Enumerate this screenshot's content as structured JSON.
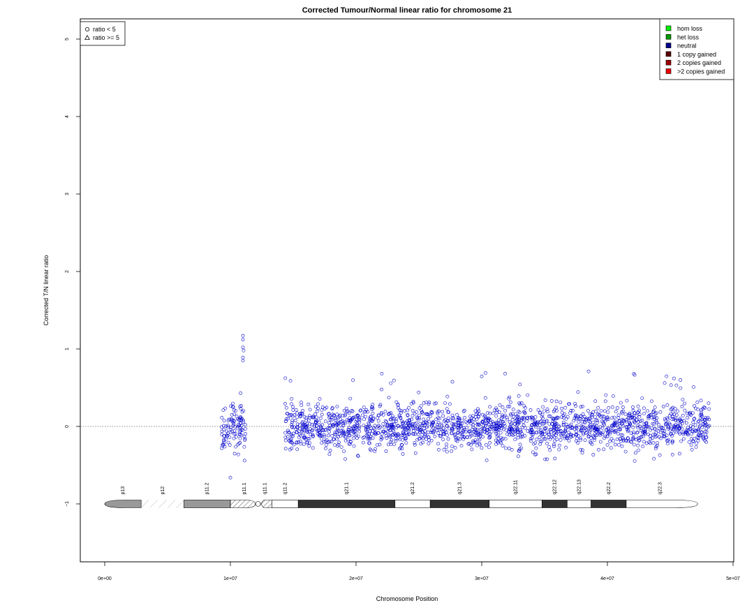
{
  "chart_data": {
    "type": "scatter",
    "title": "Corrected Tumour/Normal linear ratio for chromosome  21",
    "xlabel": "Chromosome Position",
    "ylabel": "Corrected T/N linear ratio",
    "xlim": [
      0,
      50000000
    ],
    "ylim": [
      -1.8,
      5.3
    ],
    "x_ticks": [
      0,
      10000000,
      20000000,
      30000000,
      40000000,
      50000000
    ],
    "x_tick_labels": [
      "0e+00",
      "1e+07",
      "2e+07",
      "3e+07",
      "4e+07",
      "5e+07"
    ],
    "y_ticks": [
      -1,
      0,
      1,
      2,
      3,
      4,
      5
    ],
    "y_tick_labels": [
      "−1",
      "0",
      "1",
      "2",
      "3",
      "4",
      "5"
    ],
    "reference_line": 0,
    "shape_legend": {
      "position": "top-left",
      "entries": [
        {
          "shape": "circle",
          "label": "ratio < 5"
        },
        {
          "shape": "triangle",
          "label": "ratio >= 5"
        }
      ]
    },
    "color_legend": {
      "position": "top-right",
      "entries": [
        {
          "label": "hom loss",
          "color": "#00ee00"
        },
        {
          "label": "het loss",
          "color": "#009900"
        },
        {
          "label": "neutral",
          "color": "#00008b"
        },
        {
          "label": "1 copy gained",
          "color": "#5a0000"
        },
        {
          "label": "2 copies gained",
          "color": "#9b0000"
        },
        {
          "label": ">2 copies gained",
          "color": "#ee0000"
        }
      ]
    },
    "series": [
      {
        "name": "neutral",
        "color": "#0000cc",
        "segments": [
          {
            "x_start": 9300000,
            "x_end": 11200000,
            "y_min": -0.65,
            "y_max": 0.6
          },
          {
            "x_start": 14350000,
            "x_end": 48100000,
            "y_min": -0.45,
            "y_max": 0.7
          }
        ],
        "outliers": [
          {
            "x": 11000000,
            "y": 1.17
          },
          {
            "x": 11000000,
            "y": 1.12
          },
          {
            "x": 11000000,
            "y": 1.02
          },
          {
            "x": 11050000,
            "y": 0.98
          },
          {
            "x": 11000000,
            "y": 0.89
          },
          {
            "x": 11000000,
            "y": 0.85
          },
          {
            "x": 10000000,
            "y": -0.66
          },
          {
            "x": 30300000,
            "y": 0.69
          },
          {
            "x": 38500000,
            "y": 0.71
          },
          {
            "x": 42100000,
            "y": 0.68
          },
          {
            "x": 45300000,
            "y": 0.62
          }
        ]
      }
    ],
    "ideogram": {
      "y": -1,
      "bands": [
        {
          "name": "p13",
          "start": 0,
          "end": 2900000,
          "stain": "gvar"
        },
        {
          "name": "p12",
          "start": 2900000,
          "end": 6300000,
          "stain": "stalk"
        },
        {
          "name": "p11.2",
          "start": 6300000,
          "end": 10000000,
          "stain": "gvar"
        },
        {
          "name": "p11.1",
          "start": 10000000,
          "end": 12200000,
          "stain": "acen"
        },
        {
          "name": "q11.1",
          "start": 12200000,
          "end": 13300000,
          "stain": "acen"
        },
        {
          "name": "q11.2",
          "start": 13300000,
          "end": 15400000,
          "stain": "gneg"
        },
        {
          "name": "q21.1",
          "start": 15400000,
          "end": 23100000,
          "stain": "gpos100"
        },
        {
          "name": "q21.2",
          "start": 23100000,
          "end": 25900000,
          "stain": "gneg"
        },
        {
          "name": "q21.3",
          "start": 25900000,
          "end": 30600000,
          "stain": "gpos100"
        },
        {
          "name": "q22.11",
          "start": 30600000,
          "end": 34800000,
          "stain": "gneg"
        },
        {
          "name": "q22.12",
          "start": 34800000,
          "end": 36800000,
          "stain": "gpos100"
        },
        {
          "name": "q22.13",
          "start": 36800000,
          "end": 38700000,
          "stain": "gneg"
        },
        {
          "name": "q22.2",
          "start": 38700000,
          "end": 41500000,
          "stain": "gpos100"
        },
        {
          "name": "q22.3",
          "start": 41500000,
          "end": 46900000,
          "stain": "gneg"
        }
      ]
    }
  }
}
